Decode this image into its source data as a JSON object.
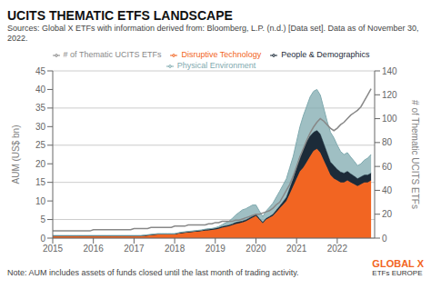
{
  "chart_data": {
    "type": "area",
    "title": "UCITS THEMATIC ETFS LANDSCAPE",
    "subtitle": "Sources: Global X ETFs with information derived from: Bloomberg, L.P. (n.d.) [Data set]. Data as of November 30, 2022.",
    "annotations": [
      {
        "text": "Note: AUM includes assets of funds closed until the last month of trading activity.",
        "color": "#444444"
      },
      {
        "text": "GLOBAL X",
        "color": "#F26522"
      },
      {
        "text": "ETFs EUROPE",
        "color": "#333333"
      }
    ],
    "y_label": "AUM (US$ bn)",
    "y2_label": "# of Thematic UCITS ETFs",
    "stacked": true,
    "grid": true,
    "legend": "top",
    "xlim": [
      2015,
      2022.92
    ],
    "xticks": [
      2015,
      2016,
      2017,
      2018,
      2019,
      2020,
      2021,
      2022
    ],
    "ylim": [
      0,
      45
    ],
    "yticks": [
      0,
      5,
      10,
      15,
      20,
      25,
      30,
      35,
      40,
      45
    ],
    "y2lim": [
      0,
      140
    ],
    "y2ticks": [
      0,
      20,
      40,
      60,
      80,
      100,
      120,
      140
    ],
    "x": [
      2015.0,
      2015.083,
      2015.167,
      2015.25,
      2015.333,
      2015.417,
      2015.5,
      2015.583,
      2015.667,
      2015.75,
      2015.833,
      2015.917,
      2016.0,
      2016.083,
      2016.167,
      2016.25,
      2016.333,
      2016.417,
      2016.5,
      2016.583,
      2016.667,
      2016.75,
      2016.833,
      2016.917,
      2017.0,
      2017.083,
      2017.167,
      2017.25,
      2017.333,
      2017.417,
      2017.5,
      2017.583,
      2017.667,
      2017.75,
      2017.833,
      2017.917,
      2018.0,
      2018.083,
      2018.167,
      2018.25,
      2018.333,
      2018.417,
      2018.5,
      2018.583,
      2018.667,
      2018.75,
      2018.833,
      2018.917,
      2019.0,
      2019.083,
      2019.167,
      2019.25,
      2019.333,
      2019.417,
      2019.5,
      2019.583,
      2019.667,
      2019.75,
      2019.833,
      2019.917,
      2020.0,
      2020.083,
      2020.167,
      2020.25,
      2020.333,
      2020.417,
      2020.5,
      2020.583,
      2020.667,
      2020.75,
      2020.833,
      2020.917,
      2021.0,
      2021.083,
      2021.167,
      2021.25,
      2021.333,
      2021.417,
      2021.5,
      2021.583,
      2021.667,
      2021.75,
      2021.833,
      2021.917,
      2022.0,
      2022.083,
      2022.167,
      2022.25,
      2022.333,
      2022.417,
      2022.5,
      2022.583,
      2022.667,
      2022.75,
      2022.833
    ],
    "series": [
      {
        "name": "Disruptive Technology",
        "type": "area",
        "color": "#F26522",
        "values": [
          0.5,
          0.5,
          0.5,
          0.5,
          0.5,
          0.5,
          0.5,
          0.5,
          0.5,
          0.5,
          0.5,
          0.5,
          0.5,
          0.5,
          0.5,
          0.5,
          0.5,
          0.5,
          0.5,
          0.5,
          0.5,
          0.5,
          0.5,
          0.5,
          0.5,
          0.5,
          0.5,
          0.6,
          0.7,
          0.8,
          0.9,
          1.0,
          1.0,
          1.0,
          1.0,
          1.0,
          1.0,
          1.2,
          1.3,
          1.4,
          1.5,
          1.6,
          1.7,
          1.8,
          1.9,
          2.0,
          2.1,
          2.2,
          2.3,
          2.5,
          2.8,
          3.0,
          3.2,
          3.5,
          3.8,
          4.0,
          4.2,
          4.5,
          5.0,
          5.5,
          6.0,
          5.0,
          4.0,
          5.0,
          5.5,
          6.0,
          7.0,
          8.0,
          9.0,
          10.0,
          12.0,
          14.0,
          16.0,
          18.0,
          19.0,
          20.5,
          22.0,
          23.5,
          24.0,
          23.0,
          21.0,
          19.0,
          17.0,
          16.0,
          15.5,
          15.0,
          15.0,
          15.5,
          15.0,
          14.5,
          14.0,
          14.5,
          15.0,
          15.0,
          15.5
        ]
      },
      {
        "name": "People & Demographics",
        "type": "area",
        "color": "#1C2B39",
        "values": [
          0.1,
          0.1,
          0.1,
          0.1,
          0.1,
          0.1,
          0.1,
          0.1,
          0.1,
          0.1,
          0.1,
          0.1,
          0.1,
          0.1,
          0.1,
          0.1,
          0.1,
          0.1,
          0.1,
          0.1,
          0.1,
          0.1,
          0.1,
          0.1,
          0.1,
          0.1,
          0.1,
          0.1,
          0.1,
          0.1,
          0.1,
          0.1,
          0.1,
          0.1,
          0.1,
          0.1,
          0.1,
          0.1,
          0.2,
          0.2,
          0.2,
          0.2,
          0.2,
          0.2,
          0.2,
          0.3,
          0.3,
          0.3,
          0.3,
          0.3,
          0.3,
          0.3,
          0.3,
          0.3,
          0.4,
          0.4,
          0.4,
          0.4,
          0.4,
          0.4,
          0.4,
          0.3,
          0.3,
          0.3,
          0.3,
          0.4,
          0.5,
          0.6,
          0.8,
          1.0,
          1.5,
          2.0,
          3.0,
          4.0,
          5.0,
          5.5,
          5.5,
          5.0,
          5.0,
          5.0,
          4.5,
          4.0,
          3.5,
          3.5,
          3.0,
          2.8,
          2.5,
          2.5,
          2.3,
          2.2,
          2.0,
          2.0,
          2.0,
          2.0,
          2.0
        ]
      },
      {
        "name": "Physical Environment",
        "type": "area",
        "color": "#7FAAAF",
        "values": [
          0.1,
          0.1,
          0.1,
          0.1,
          0.1,
          0.1,
          0.1,
          0.1,
          0.1,
          0.1,
          0.1,
          0.1,
          0.1,
          0.1,
          0.1,
          0.1,
          0.1,
          0.1,
          0.1,
          0.1,
          0.1,
          0.1,
          0.1,
          0.1,
          0.1,
          0.1,
          0.1,
          0.1,
          0.1,
          0.1,
          0.1,
          0.1,
          0.1,
          0.1,
          0.1,
          0.1,
          0.1,
          0.1,
          0.1,
          0.1,
          0.1,
          0.1,
          0.1,
          0.1,
          0.1,
          0.1,
          0.1,
          0.1,
          0.2,
          0.3,
          0.5,
          0.8,
          1.0,
          1.5,
          2.0,
          2.5,
          3.0,
          3.0,
          3.0,
          3.0,
          2.5,
          2.0,
          1.5,
          2.0,
          2.5,
          3.0,
          3.5,
          4.0,
          4.5,
          5.0,
          5.5,
          6.0,
          7.0,
          8.0,
          9.0,
          9.5,
          10.5,
          11.0,
          11.0,
          10.5,
          9.5,
          8.5,
          8.0,
          7.5,
          6.5,
          5.5,
          5.0,
          5.0,
          4.5,
          4.0,
          3.5,
          3.5,
          4.0,
          4.5,
          5.0
        ]
      },
      {
        "name": "# of Thematic UCITS ETFs",
        "type": "line",
        "axis": "y2",
        "color": "#888888",
        "values": [
          6,
          6,
          6,
          6,
          6,
          6,
          6,
          6,
          6,
          6,
          6,
          6,
          7,
          7,
          7,
          7,
          7,
          7,
          7,
          7,
          7,
          7,
          7,
          7,
          8,
          8,
          8,
          8,
          8,
          9,
          9,
          9,
          9,
          9,
          9,
          9,
          10,
          10,
          10,
          10,
          11,
          11,
          11,
          11,
          11,
          11,
          12,
          12,
          13,
          13,
          14,
          14,
          14,
          14,
          15,
          15,
          16,
          17,
          18,
          19,
          20,
          20,
          21,
          22,
          23,
          25,
          28,
          30,
          35,
          40,
          45,
          52,
          60,
          68,
          75,
          82,
          88,
          93,
          97,
          100,
          98,
          95,
          92,
          90,
          92,
          95,
          97,
          100,
          103,
          105,
          107,
          110,
          115,
          120,
          125
        ]
      }
    ]
  }
}
